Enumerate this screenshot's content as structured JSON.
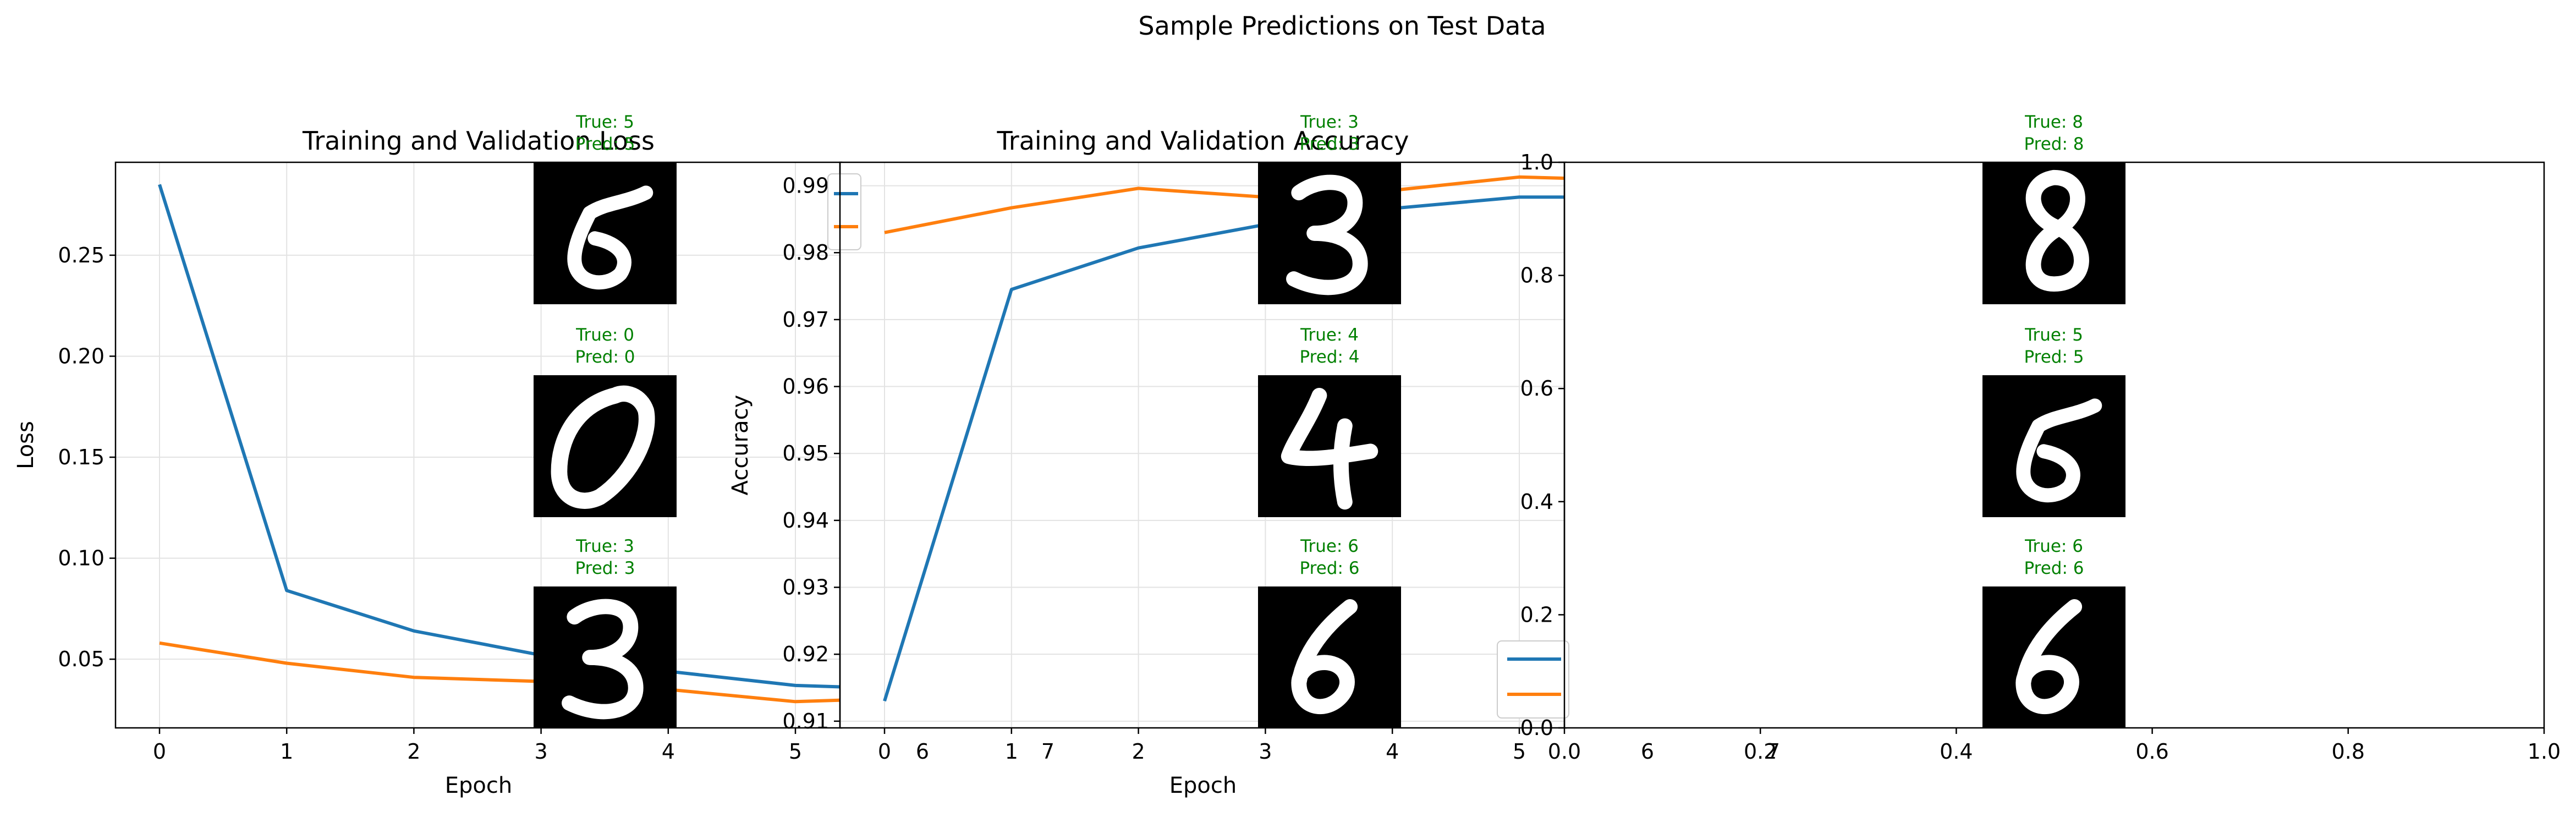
{
  "figure": {
    "suptitle": "Sample Predictions on Test Data"
  },
  "chart_data": [
    {
      "type": "line",
      "title": "Training and Validation Loss",
      "xlabel": "Epoch",
      "ylabel": "Loss",
      "xlim": [
        -0.5,
        5.5
      ],
      "ylim": [
        0.016,
        0.296
      ],
      "xticks": [
        0,
        1,
        2,
        3,
        4,
        5
      ],
      "yticks": [
        0.05,
        0.1,
        0.15,
        0.2,
        0.25
      ],
      "ytick_labels": [
        "0.05",
        "0.10",
        "0.15",
        "0.20",
        "0.25"
      ],
      "grid": true,
      "series": [
        {
          "color": "#1f77b4",
          "x": [
            0,
            1,
            2,
            3,
            4,
            5,
            5.5
          ],
          "y": [
            0.285,
            0.084,
            0.064,
            0.052,
            0.044,
            0.037,
            0.036
          ]
        },
        {
          "color": "#ff7f0e",
          "x": [
            0,
            1,
            2,
            3,
            4,
            5,
            5.5
          ],
          "y": [
            0.058,
            0.048,
            0.041,
            0.039,
            0.035,
            0.029,
            0.03
          ]
        }
      ]
    },
    {
      "type": "line",
      "title": "Training and Validation Accuracy",
      "xlabel": "Epoch",
      "ylabel": "Accuracy",
      "xlim": [
        -0.25,
        5.4
      ],
      "ylim": [
        0.909,
        0.9935
      ],
      "xticks": [
        0,
        1,
        2,
        3,
        4,
        5
      ],
      "yticks": [
        0.91,
        0.92,
        0.93,
        0.94,
        0.95,
        0.96,
        0.97,
        0.98,
        0.99
      ],
      "ytick_labels": [
        "0.91",
        "0.92",
        "0.93",
        "0.94",
        "0.95",
        "0.96",
        "0.97",
        "0.98",
        "0.99"
      ],
      "grid": true,
      "series": [
        {
          "color": "#1f77b4",
          "x": [
            0,
            1,
            2,
            3,
            4,
            5,
            5.4
          ],
          "y": [
            0.913,
            0.9745,
            0.9807,
            0.9842,
            0.9866,
            0.9883,
            0.9883
          ]
        },
        {
          "color": "#ff7f0e",
          "x": [
            0,
            1,
            2,
            3,
            4,
            5,
            5.4
          ],
          "y": [
            0.983,
            0.9867,
            0.9896,
            0.9883,
            0.9893,
            0.9913,
            0.9911
          ]
        }
      ]
    },
    {
      "type": "line",
      "title": "",
      "xlim": [
        0,
        1
      ],
      "ylim": [
        0,
        1
      ],
      "xticks": [
        0.0,
        0.2,
        0.4,
        0.6,
        0.8,
        1.0
      ],
      "xtick_labels": [
        "0.0",
        "0.2",
        "0.4",
        "0.6",
        "0.8",
        "1.0"
      ],
      "yticks": [
        0.0,
        0.2,
        0.4,
        0.6,
        0.8,
        1.0
      ],
      "ytick_labels": [
        "0.0",
        "0.2",
        "0.4",
        "0.6",
        "0.8",
        "1.0"
      ],
      "grid": false,
      "series": []
    }
  ],
  "digit_grid": {
    "columns": [
      {
        "xticks": [
          "6",
          "7"
        ]
      },
      {
        "xticks": [
          "6",
          "7"
        ]
      },
      {
        "xticks": []
      }
    ],
    "samples": [
      {
        "label": "5",
        "true_text": "True: 5",
        "pred_text": "Pred: 5",
        "text_color": "#008000"
      },
      {
        "label": "3",
        "true_text": "True: 3",
        "pred_text": "Pred: 3",
        "text_color": "#008000"
      },
      {
        "label": "8",
        "true_text": "True: 8",
        "pred_text": "Pred: 8",
        "text_color": "#008000"
      },
      {
        "label": "0",
        "true_text": "True: 0",
        "pred_text": "Pred: 0",
        "text_color": "#008000"
      },
      {
        "label": "4",
        "true_text": "True: 4",
        "pred_text": "Pred: 4",
        "text_color": "#008000"
      },
      {
        "label": "5",
        "true_text": "True: 5",
        "pred_text": "Pred: 5",
        "text_color": "#008000"
      },
      {
        "label": "3",
        "true_text": "True: 3",
        "pred_text": "Pred: 3",
        "text_color": "#008000"
      },
      {
        "label": "6",
        "true_text": "True: 6",
        "pred_text": "Pred: 6",
        "text_color": "#008000"
      },
      {
        "label": "6",
        "true_text": "True: 6",
        "pred_text": "Pred: 6",
        "text_color": "#008000"
      }
    ]
  },
  "colors": {
    "train": "#1f77b4",
    "val": "#ff7f0e",
    "grid": "#e3e3e3",
    "correct_prediction": "#008000"
  }
}
